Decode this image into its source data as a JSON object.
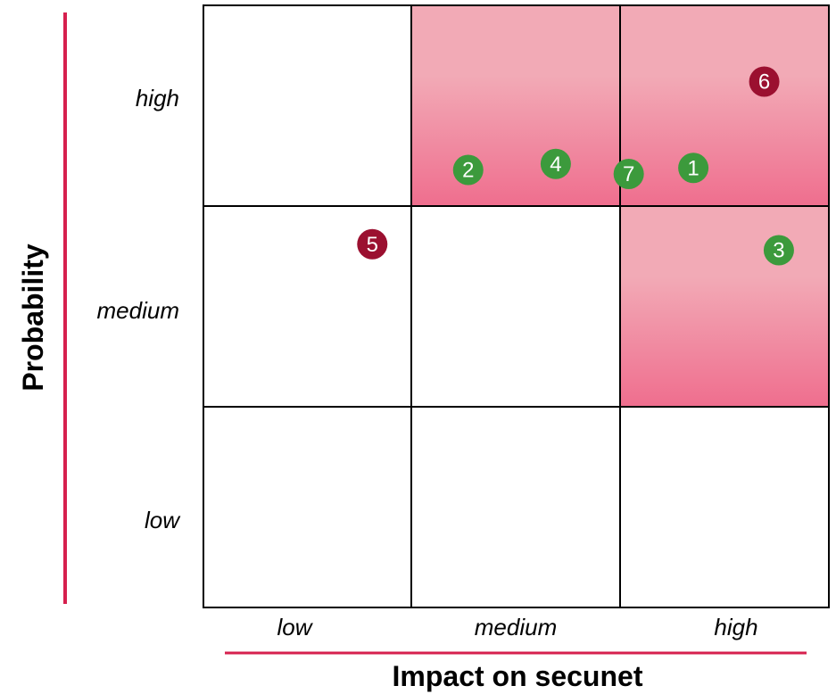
{
  "chart_data": {
    "type": "scatter",
    "xlabel": "Impact on secunet",
    "ylabel": "Probability",
    "x_categories": [
      "low",
      "medium",
      "high"
    ],
    "y_categories": [
      "low",
      "medium",
      "high"
    ],
    "x_range": [
      0,
      3
    ],
    "y_range": [
      0,
      3
    ],
    "highlighted_cells": [
      {
        "impact": "medium",
        "probability": "high"
      },
      {
        "impact": "high",
        "probability": "high"
      },
      {
        "impact": "high",
        "probability": "medium"
      }
    ],
    "points": [
      {
        "label": "1",
        "x": 2.35,
        "y": 2.19,
        "color": "#3c9a3c"
      },
      {
        "label": "2",
        "x": 1.27,
        "y": 2.18,
        "color": "#3c9a3c"
      },
      {
        "label": "3",
        "x": 2.76,
        "y": 1.78,
        "color": "#3c9a3c"
      },
      {
        "label": "4",
        "x": 1.69,
        "y": 2.21,
        "color": "#3c9a3c"
      },
      {
        "label": "5",
        "x": 0.81,
        "y": 1.81,
        "color": "#9b1030"
      },
      {
        "label": "6",
        "x": 2.69,
        "y": 2.62,
        "color": "#9b1030"
      },
      {
        "label": "7",
        "x": 2.04,
        "y": 2.16,
        "color": "#3c9a3c"
      }
    ],
    "colors": {
      "highlight_top": "#f2aab6",
      "highlight_bottom": "#ef6e8e",
      "accent_line": "#d6204e",
      "grid": "#000000"
    }
  }
}
